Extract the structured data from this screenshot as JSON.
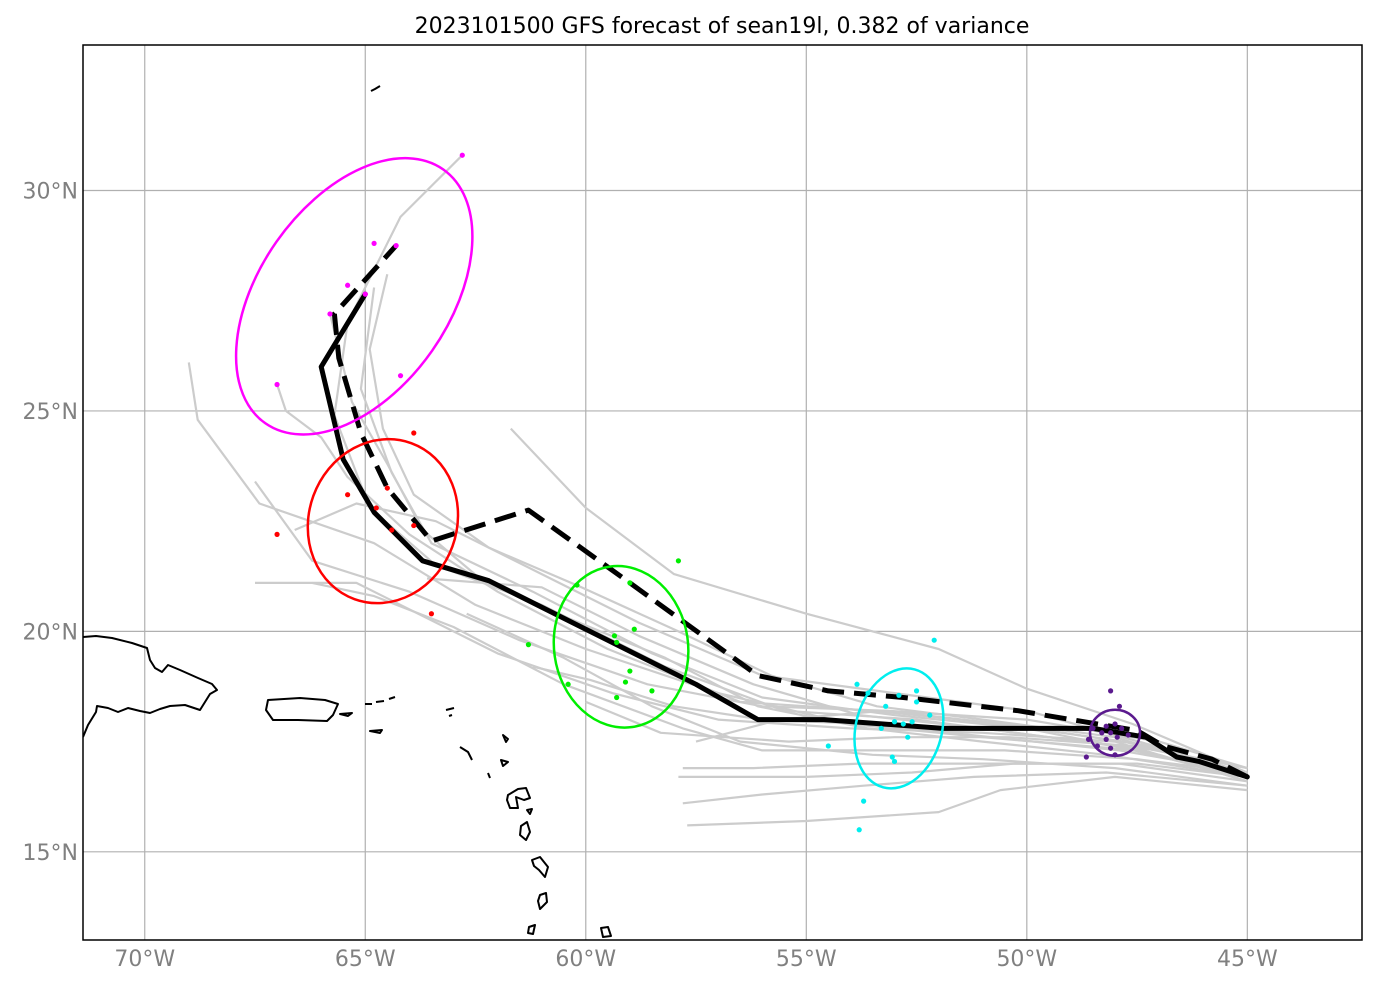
{
  "chart": {
    "title": "2023101500 GFS forecast of sean19l, 0.382 of variance"
  },
  "chart_data": {
    "type": "map-track",
    "lon_range": [
      -71.4,
      -42.4
    ],
    "lat_range": [
      13.0,
      33.3
    ],
    "grid": true,
    "x_ticks": [
      {
        "lon": -70,
        "label": "70°W"
      },
      {
        "lon": -65,
        "label": "65°W"
      },
      {
        "lon": -60,
        "label": "60°W"
      },
      {
        "lon": -55,
        "label": "55°W"
      },
      {
        "lon": -50,
        "label": "50°W"
      },
      {
        "lon": -45,
        "label": "45°W"
      }
    ],
    "y_ticks": [
      {
        "lat": 15,
        "label": "15°N"
      },
      {
        "lat": 20,
        "label": "20°N"
      },
      {
        "lat": 25,
        "label": "25°N"
      },
      {
        "lat": 30,
        "label": "30°N"
      }
    ],
    "colors": {
      "members": "#cccccc",
      "mean": "#000000",
      "coast": "#000000",
      "grid": "#b0b0b0",
      "ellipse_magenta": "#ff00ff",
      "ellipse_red": "#ff0000",
      "ellipse_green": "#00ee00",
      "ellipse_cyan": "#00eeee",
      "ellipse_purple": "#5b1a8e"
    },
    "mean_track_solid": [
      [
        -45.0,
        16.7
      ],
      [
        -46.1,
        17.05
      ],
      [
        -46.6,
        17.15
      ],
      [
        -47.3,
        17.6
      ],
      [
        -48.5,
        17.8
      ],
      [
        -50.0,
        17.8
      ],
      [
        -51.9,
        17.8
      ],
      [
        -54.6,
        18.0
      ],
      [
        -56.1,
        18.0
      ],
      [
        -57.5,
        18.8
      ],
      [
        -60.3,
        20.2
      ],
      [
        -62.2,
        21.15
      ],
      [
        -63.7,
        21.6
      ],
      [
        -64.8,
        22.7
      ],
      [
        -65.5,
        23.9
      ],
      [
        -66.0,
        26.0
      ],
      [
        -65.0,
        27.65
      ]
    ],
    "mean_track_dashed": [
      [
        -45.0,
        16.7
      ],
      [
        -45.8,
        17.1
      ],
      [
        -46.9,
        17.4
      ],
      [
        -47.5,
        17.75
      ],
      [
        -48.1,
        17.85
      ],
      [
        -50.2,
        18.2
      ],
      [
        -52.8,
        18.5
      ],
      [
        -54.5,
        18.65
      ],
      [
        -56.1,
        19.0
      ],
      [
        -59.0,
        21.1
      ],
      [
        -61.3,
        22.75
      ],
      [
        -63.5,
        22.05
      ],
      [
        -64.5,
        23.25
      ],
      [
        -65.1,
        24.5
      ],
      [
        -65.6,
        26.2
      ],
      [
        -65.7,
        27.2
      ],
      [
        -64.3,
        28.75
      ]
    ],
    "ellipses": [
      {
        "color": "magenta",
        "center": [
          -65.25,
          27.6
        ],
        "rx": 95,
        "ry": 155,
        "angle_deg": 35
      },
      {
        "color": "red",
        "center": [
          -64.6,
          22.5
        ],
        "rx": 74,
        "ry": 83,
        "angle_deg": 20
      },
      {
        "color": "green",
        "center": [
          -59.2,
          19.65
        ],
        "rx": 67,
        "ry": 81,
        "angle_deg": -8
      },
      {
        "color": "cyan",
        "center": [
          -52.9,
          17.8
        ],
        "rx": 43,
        "ry": 61,
        "angle_deg": 15
      },
      {
        "color": "purple",
        "center": [
          -48.0,
          17.7
        ],
        "rx": 25,
        "ry": 23,
        "angle_deg": 0
      }
    ],
    "scatter_points": {
      "magenta": [
        [
          -62.8,
          30.8
        ],
        [
          -64.3,
          28.75
        ],
        [
          -64.8,
          28.8
        ],
        [
          -65.0,
          27.65
        ],
        [
          -65.4,
          27.85
        ],
        [
          -65.8,
          27.2
        ],
        [
          -64.2,
          25.8
        ],
        [
          -67.0,
          25.6
        ]
      ],
      "red": [
        [
          -63.9,
          24.5
        ],
        [
          -64.5,
          23.25
        ],
        [
          -64.75,
          22.8
        ],
        [
          -65.4,
          23.1
        ],
        [
          -64.4,
          22.3
        ],
        [
          -63.9,
          22.4
        ],
        [
          -67.0,
          22.2
        ],
        [
          -63.5,
          20.4
        ]
      ],
      "green": [
        [
          -59.0,
          21.1
        ],
        [
          -57.9,
          21.6
        ],
        [
          -60.2,
          21.05
        ],
        [
          -58.9,
          20.05
        ],
        [
          -59.3,
          19.75
        ],
        [
          -59.35,
          19.9
        ],
        [
          -61.3,
          19.7
        ],
        [
          -59.0,
          19.1
        ],
        [
          -59.1,
          18.85
        ],
        [
          -58.5,
          18.65
        ],
        [
          -60.4,
          18.8
        ],
        [
          -59.3,
          18.5
        ]
      ],
      "cyan": [
        [
          -52.1,
          19.8
        ],
        [
          -52.9,
          18.55
        ],
        [
          -52.5,
          18.65
        ],
        [
          -53.6,
          18.6
        ],
        [
          -53.85,
          18.8
        ],
        [
          -52.5,
          18.4
        ],
        [
          -53.2,
          18.3
        ],
        [
          -52.2,
          18.1
        ],
        [
          -53.0,
          17.95
        ],
        [
          -52.6,
          17.95
        ],
        [
          -52.8,
          17.9
        ],
        [
          -53.3,
          17.8
        ],
        [
          -52.7,
          17.6
        ],
        [
          -54.5,
          17.4
        ],
        [
          -53.05,
          17.15
        ],
        [
          -53.0,
          17.05
        ],
        [
          -53.7,
          16.15
        ],
        [
          -53.8,
          15.5
        ]
      ],
      "purple": [
        [
          -48.1,
          18.65
        ],
        [
          -47.9,
          18.3
        ],
        [
          -48.0,
          17.9
        ],
        [
          -48.2,
          17.85
        ],
        [
          -47.85,
          17.8
        ],
        [
          -48.1,
          17.7
        ],
        [
          -47.95,
          17.6
        ],
        [
          -48.3,
          17.7
        ],
        [
          -48.5,
          17.8
        ],
        [
          -48.6,
          17.55
        ],
        [
          -48.2,
          17.55
        ],
        [
          -48.4,
          17.4
        ],
        [
          -48.1,
          17.35
        ],
        [
          -48.65,
          17.15
        ],
        [
          -48.0,
          17.2
        ],
        [
          -47.7,
          17.65
        ]
      ]
    },
    "member_tracks": [
      [
        [
          -45.0,
          16.9
        ],
        [
          -47.0,
          17.3
        ],
        [
          -49.5,
          17.6
        ],
        [
          -52.5,
          18.0
        ],
        [
          -55.5,
          18.2
        ],
        [
          -58.2,
          19.2
        ],
        [
          -61.0,
          20.6
        ],
        [
          -63.4,
          21.5
        ],
        [
          -64.9,
          22.8
        ],
        [
          -65.7,
          24.9
        ],
        [
          -65.4,
          27.0
        ],
        [
          -64.2,
          29.4
        ],
        [
          -62.8,
          30.8
        ]
      ],
      [
        [
          -45.0,
          16.8
        ],
        [
          -47.2,
          17.4
        ],
        [
          -50.5,
          17.9
        ],
        [
          -53.5,
          18.2
        ],
        [
          -56.5,
          18.4
        ],
        [
          -59.5,
          19.6
        ],
        [
          -62.0,
          20.9
        ],
        [
          -64.0,
          22.2
        ],
        [
          -65.4,
          23.5
        ],
        [
          -66.0,
          24.4
        ],
        [
          -66.8,
          25.0
        ],
        [
          -67.0,
          25.6
        ]
      ],
      [
        [
          -45.0,
          16.6
        ],
        [
          -47.0,
          17.2
        ],
        [
          -50.0,
          17.8
        ],
        [
          -53.0,
          18.1
        ],
        [
          -56.0,
          18.5
        ],
        [
          -58.5,
          19.5
        ],
        [
          -61.2,
          20.9
        ],
        [
          -63.5,
          22.0
        ],
        [
          -64.4,
          23.6
        ],
        [
          -65.1,
          25.5
        ],
        [
          -64.8,
          27.8
        ]
      ],
      [
        [
          -45.2,
          16.7
        ],
        [
          -47.5,
          17.3
        ],
        [
          -51.0,
          17.6
        ],
        [
          -54.0,
          17.9
        ],
        [
          -57.0,
          18.6
        ],
        [
          -60.0,
          19.6
        ],
        [
          -62.5,
          20.6
        ],
        [
          -64.8,
          22.0
        ],
        [
          -67.4,
          22.9
        ],
        [
          -68.8,
          24.8
        ],
        [
          -69.0,
          26.1
        ]
      ],
      [
        [
          -45.0,
          16.9
        ],
        [
          -47.0,
          17.5
        ],
        [
          -50.0,
          18.0
        ],
        [
          -53.2,
          18.2
        ],
        [
          -56.0,
          18.3
        ],
        [
          -58.6,
          18.8
        ],
        [
          -61.5,
          19.8
        ],
        [
          -64.0,
          20.9
        ],
        [
          -66.2,
          21.6
        ],
        [
          -67.5,
          23.4
        ]
      ],
      [
        [
          -45.0,
          16.7
        ],
        [
          -47.1,
          17.4
        ],
        [
          -50.0,
          18.2
        ],
        [
          -53.0,
          18.6
        ],
        [
          -56.0,
          19.0
        ],
        [
          -58.8,
          20.2
        ],
        [
          -61.0,
          21.3
        ],
        [
          -63.4,
          22.5
        ],
        [
          -65.2,
          22.9
        ],
        [
          -66.6,
          22.3
        ]
      ],
      [
        [
          -45.0,
          16.8
        ],
        [
          -47.6,
          17.9
        ],
        [
          -50.0,
          18.7
        ],
        [
          -52.0,
          19.6
        ],
        [
          -55.0,
          20.4
        ],
        [
          -58.0,
          21.3
        ],
        [
          -60.0,
          22.8
        ],
        [
          -61.7,
          24.6
        ]
      ],
      [
        [
          -45.0,
          16.6
        ],
        [
          -48.0,
          17.5
        ],
        [
          -51.0,
          17.7
        ],
        [
          -54.0,
          17.8
        ],
        [
          -57.0,
          18.0
        ],
        [
          -59.4,
          18.6
        ],
        [
          -62.0,
          19.5
        ],
        [
          -65.2,
          21.1
        ],
        [
          -67.5,
          21.1
        ]
      ],
      [
        [
          -45.1,
          16.8
        ],
        [
          -47.5,
          17.1
        ],
        [
          -50.5,
          17.3
        ],
        [
          -53.5,
          17.3
        ],
        [
          -56.0,
          17.3
        ],
        [
          -57.8,
          17.8
        ],
        [
          -60.5,
          18.8
        ],
        [
          -63.0,
          20.1
        ],
        [
          -64.8,
          20.8
        ],
        [
          -66.2,
          21.1
        ]
      ],
      [
        [
          -45.0,
          16.7
        ],
        [
          -48.0,
          17.4
        ],
        [
          -51.0,
          17.8
        ],
        [
          -53.8,
          18.1
        ],
        [
          -56.2,
          18.8
        ],
        [
          -58.8,
          19.9
        ],
        [
          -61.0,
          21.0
        ],
        [
          -63.6,
          21.2
        ]
      ],
      [
        [
          -45.0,
          16.5
        ],
        [
          -48.0,
          16.9
        ],
        [
          -51.0,
          17.1
        ],
        [
          -53.5,
          17.2
        ],
        [
          -56.5,
          17.5
        ],
        [
          -58.5,
          18.3
        ],
        [
          -60.5,
          19.4
        ],
        [
          -62.7,
          20.4
        ]
      ],
      [
        [
          -45.0,
          16.8
        ],
        [
          -47.8,
          17.5
        ],
        [
          -50.6,
          17.9
        ],
        [
          -53.2,
          18.2
        ],
        [
          -55.6,
          18.0
        ],
        [
          -57.5,
          17.5
        ]
      ],
      [
        [
          -45.0,
          16.6
        ],
        [
          -47.9,
          17.0
        ],
        [
          -51.0,
          17.0
        ],
        [
          -53.8,
          17.0
        ],
        [
          -56.2,
          16.9
        ],
        [
          -57.8,
          16.9
        ]
      ],
      [
        [
          -45.0,
          16.5
        ],
        [
          -48.2,
          16.8
        ],
        [
          -51.2,
          16.7
        ],
        [
          -53.7,
          16.5
        ],
        [
          -56.0,
          16.3
        ],
        [
          -57.8,
          16.1
        ]
      ],
      [
        [
          -45.0,
          16.4
        ],
        [
          -48.0,
          16.7
        ],
        [
          -50.6,
          16.4
        ],
        [
          -52.0,
          15.9
        ],
        [
          -55.0,
          15.7
        ],
        [
          -57.7,
          15.6
        ]
      ],
      [
        [
          -45.0,
          16.7
        ],
        [
          -47.5,
          17.0
        ],
        [
          -50.3,
          17.0
        ],
        [
          -52.6,
          16.8
        ],
        [
          -55.0,
          16.7
        ],
        [
          -57.9,
          16.7
        ]
      ],
      [
        [
          -45.0,
          16.9
        ],
        [
          -47.6,
          17.4
        ],
        [
          -50.4,
          17.6
        ],
        [
          -53.0,
          17.6
        ],
        [
          -55.4,
          17.5
        ],
        [
          -58.3,
          17.7
        ],
        [
          -60.0,
          18.4
        ]
      ],
      [
        [
          -45.0,
          16.7
        ],
        [
          -48.2,
          17.2
        ],
        [
          -51.0,
          17.5
        ],
        [
          -53.6,
          17.8
        ],
        [
          -56.1,
          18.3
        ],
        [
          -58.2,
          19.4
        ],
        [
          -60.4,
          20.3
        ],
        [
          -62.4,
          21.2
        ],
        [
          -63.7,
          22.3
        ],
        [
          -64.5,
          23.8
        ],
        [
          -65.3,
          25.2
        ],
        [
          -65.8,
          27.2
        ]
      ],
      [
        [
          -45.0,
          16.8
        ],
        [
          -47.9,
          17.3
        ],
        [
          -50.8,
          17.6
        ],
        [
          -53.6,
          17.9
        ],
        [
          -56.0,
          18.0
        ],
        [
          -58.0,
          18.3
        ],
        [
          -59.9,
          18.9
        ],
        [
          -61.2,
          19.2
        ]
      ],
      [
        [
          -45.0,
          16.7
        ],
        [
          -48.0,
          17.6
        ],
        [
          -51.0,
          18.0
        ],
        [
          -53.4,
          18.3
        ],
        [
          -55.8,
          19.0
        ],
        [
          -57.9,
          20.0
        ],
        [
          -60.1,
          21.0
        ],
        [
          -62.2,
          21.9
        ],
        [
          -63.9,
          23.1
        ],
        [
          -64.6,
          24.6
        ],
        [
          -64.9,
          26.4
        ],
        [
          -64.5,
          28.1
        ]
      ]
    ]
  }
}
